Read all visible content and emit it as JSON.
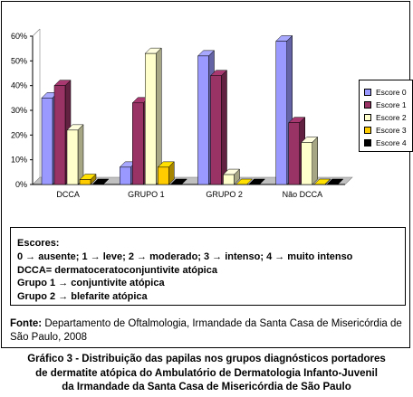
{
  "chart_data": {
    "type": "bar",
    "categories": [
      "DCCA",
      "GRUPO 1",
      "GRUPO 2",
      "Não DCCA"
    ],
    "series": [
      {
        "name": "Escore 0",
        "color": "#9999ff",
        "values": [
          35,
          7,
          52,
          58
        ]
      },
      {
        "name": "Escore 1",
        "color": "#993366",
        "values": [
          40,
          33,
          44,
          25
        ]
      },
      {
        "name": "Escore 2",
        "color": "#ffffcc",
        "values": [
          22,
          53,
          4,
          17
        ]
      },
      {
        "name": "Escore 3",
        "color": "#ffcc00",
        "values": [
          2,
          7,
          0,
          0
        ]
      },
      {
        "name": "Escore 4",
        "color": "#000000",
        "values": [
          0,
          0,
          0,
          0
        ]
      }
    ],
    "yticks": [
      "0%",
      "10%",
      "20%",
      "30%",
      "40%",
      "50%",
      "60%"
    ],
    "ylim": [
      0,
      60
    ],
    "grid": false,
    "legend_position": "right"
  },
  "scores": {
    "heading": "Escores:",
    "lines": [
      "0 → ausente; 1 → leve; 2 → moderado; 3 → intenso; 4 → muito intenso",
      "DCCA= dermatoceratoconjuntivite atópica",
      "Grupo 1 → conjuntivite atópica",
      "Grupo 2 → blefarite atópica"
    ]
  },
  "source": {
    "label": "Fonte:",
    "text": " Departamento de Oftalmologia, Irmandade da Santa Casa de Misericórdia de São Paulo, 2008"
  },
  "caption": {
    "line1": "Gráfico 3 - Distribuição das papilas nos grupos diagnósticos portadores",
    "line2": "de dermatite atópica do Ambulatório de Dermatologia Infanto-Juvenil",
    "line3": "da Irmandade da Santa Casa de Misericórdia de São Paulo"
  }
}
